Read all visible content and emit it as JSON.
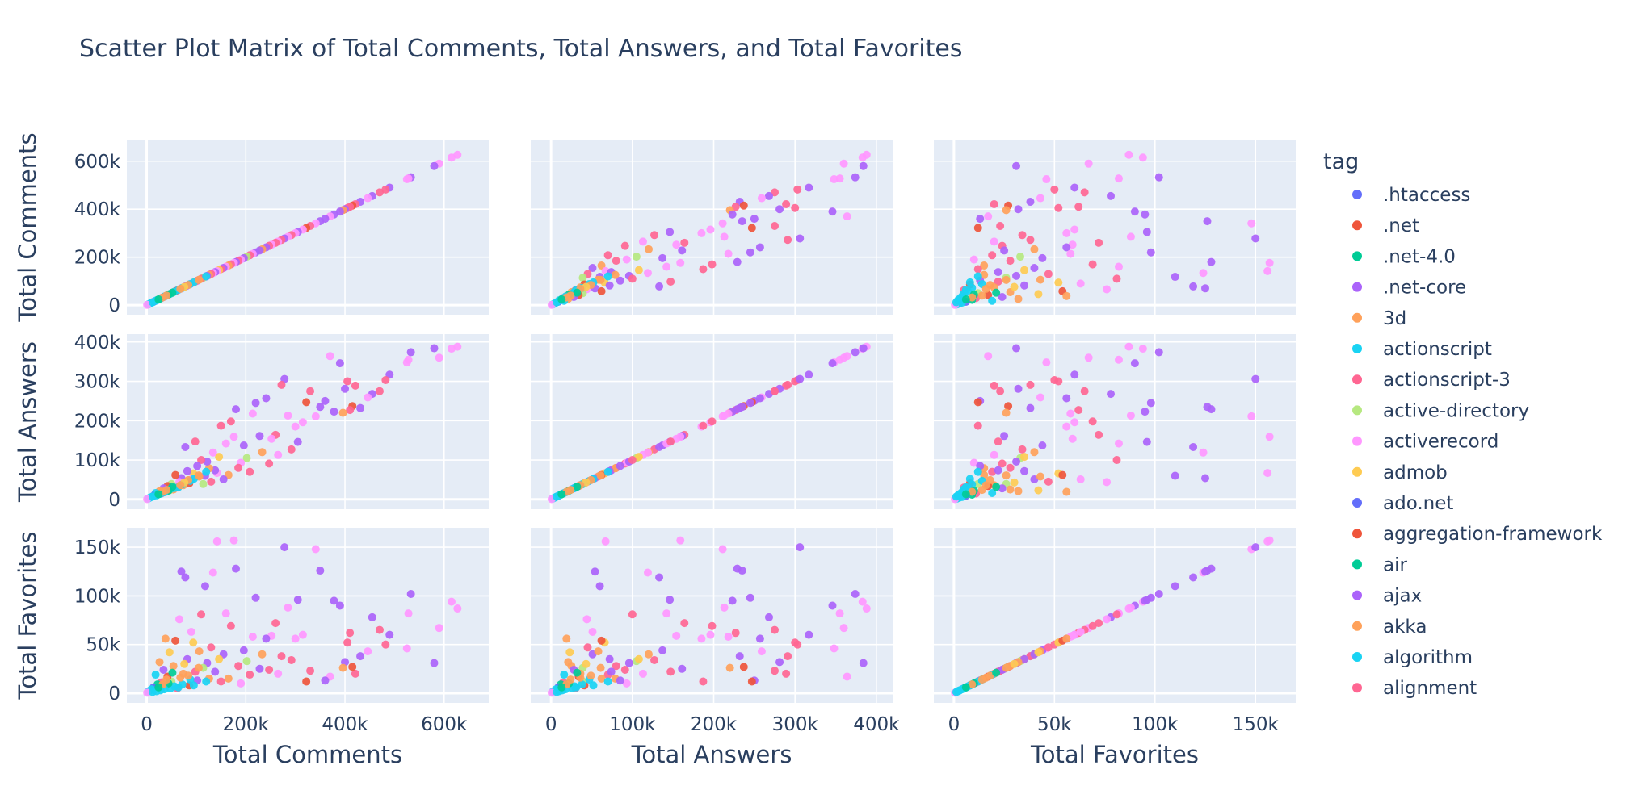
{
  "chart_data": {
    "type": "scatter",
    "subtype": "scatter-matrix",
    "title": "Scatter Plot Matrix of Total Comments, Total Answers, and Total Favorites",
    "dimensions": [
      "Total Comments",
      "Total Answers",
      "Total Favorites"
    ],
    "axis_ranges": {
      "Total Comments": [
        -40000,
        690000
      ],
      "Total Answers": [
        -25000,
        420000
      ],
      "Total Favorites": [
        -10000,
        170000
      ]
    },
    "ticks": {
      "Total Comments": [
        {
          "v": 0,
          "label": "0"
        },
        {
          "v": 200000,
          "label": "200k"
        },
        {
          "v": 400000,
          "label": "400k"
        },
        {
          "v": 600000,
          "label": "600k"
        }
      ],
      "Total Answers": [
        {
          "v": 0,
          "label": "0"
        },
        {
          "v": 100000,
          "label": "100k"
        },
        {
          "v": 200000,
          "label": "200k"
        },
        {
          "v": 300000,
          "label": "300k"
        },
        {
          "v": 400000,
          "label": "400k"
        }
      ],
      "Total Favorites": [
        {
          "v": 0,
          "label": "0"
        },
        {
          "v": 50000,
          "label": "50k"
        },
        {
          "v": 100000,
          "label": "100k"
        },
        {
          "v": 150000,
          "label": "150k"
        }
      ]
    },
    "grid": true,
    "legend": {
      "title": "tag",
      "position": "right",
      "entries": [
        {
          "name": ".htaccess",
          "color": "#636efa"
        },
        {
          "name": ".net",
          "color": "#EF553B"
        },
        {
          "name": ".net-4.0",
          "color": "#00cc96"
        },
        {
          "name": ".net-core",
          "color": "#ab63fa"
        },
        {
          "name": "3d",
          "color": "#FFA15A"
        },
        {
          "name": "actionscript",
          "color": "#19d3f3"
        },
        {
          "name": "actionscript-3",
          "color": "#FF6692"
        },
        {
          "name": "active-directory",
          "color": "#B6E880"
        },
        {
          "name": "activerecord",
          "color": "#FF97FF"
        },
        {
          "name": "admob",
          "color": "#FECB52"
        },
        {
          "name": "ado.net",
          "color": "#636efa"
        },
        {
          "name": "aggregation-framework",
          "color": "#EF553B"
        },
        {
          "name": "air",
          "color": "#00cc96"
        },
        {
          "name": "ajax",
          "color": "#ab63fa"
        },
        {
          "name": "akka",
          "color": "#FFA15A"
        },
        {
          "name": "algorithm",
          "color": "#19d3f3"
        },
        {
          "name": "alignment",
          "color": "#FF6692"
        }
      ]
    },
    "columns": [
      "comments",
      "answers",
      "favorites",
      "tag_index"
    ],
    "points": [
      [
        627000,
        388000,
        87000,
        8
      ],
      [
        615000,
        383000,
        94000,
        8
      ],
      [
        590000,
        360000,
        67000,
        8
      ],
      [
        580000,
        384000,
        31000,
        3
      ],
      [
        533000,
        374000,
        102000,
        3
      ],
      [
        528000,
        355000,
        82000,
        8
      ],
      [
        525000,
        348000,
        46000,
        8
      ],
      [
        490000,
        317000,
        60000,
        3
      ],
      [
        482000,
        303000,
        50000,
        6
      ],
      [
        470000,
        275000,
        65000,
        6
      ],
      [
        455000,
        268000,
        78000,
        3
      ],
      [
        446000,
        259000,
        43000,
        8
      ],
      [
        431000,
        232000,
        38000,
        3
      ],
      [
        421000,
        289000,
        20000,
        6
      ],
      [
        415000,
        237000,
        27000,
        11
      ],
      [
        410000,
        227000,
        62000,
        6
      ],
      [
        405000,
        300000,
        52000,
        6
      ],
      [
        400000,
        281000,
        32000,
        3
      ],
      [
        396000,
        220000,
        26000,
        4
      ],
      [
        390000,
        346000,
        90000,
        3
      ],
      [
        378000,
        223000,
        95000,
        3
      ],
      [
        370000,
        364000,
        17000,
        8
      ],
      [
        360000,
        250000,
        13000,
        3
      ],
      [
        350000,
        235000,
        126000,
        3
      ],
      [
        341000,
        211000,
        148000,
        8
      ],
      [
        330000,
        275000,
        23000,
        6
      ],
      [
        322000,
        247000,
        12000,
        11
      ],
      [
        315000,
        196000,
        60000,
        8
      ],
      [
        305000,
        146000,
        96000,
        3
      ],
      [
        300000,
        185000,
        56000,
        8
      ],
      [
        292000,
        127000,
        34000,
        6
      ],
      [
        285000,
        213000,
        88000,
        8
      ],
      [
        278000,
        306000,
        150000,
        3
      ],
      [
        272000,
        291000,
        38000,
        6
      ],
      [
        265000,
        113000,
        20000,
        8
      ],
      [
        260000,
        164000,
        72000,
        6
      ],
      [
        252000,
        154000,
        59000,
        8
      ],
      [
        247000,
        91000,
        24000,
        6
      ],
      [
        241000,
        257000,
        56000,
        3
      ],
      [
        233000,
        120000,
        40000,
        4
      ],
      [
        228000,
        161000,
        25000,
        3
      ],
      [
        220000,
        245000,
        98000,
        3
      ],
      [
        214000,
        218000,
        58000,
        8
      ],
      [
        208000,
        70000,
        19000,
        6
      ],
      [
        202000,
        105000,
        33000,
        7
      ],
      [
        196000,
        137000,
        44000,
        3
      ],
      [
        190000,
        93000,
        10000,
        8
      ],
      [
        185000,
        80000,
        28000,
        6
      ],
      [
        180000,
        229000,
        128000,
        3
      ],
      [
        176000,
        159000,
        157000,
        8
      ],
      [
        170000,
        198000,
        69000,
        6
      ],
      [
        165000,
        62000,
        15000,
        4
      ],
      [
        160000,
        142000,
        82000,
        8
      ],
      [
        155000,
        51000,
        40000,
        3
      ],
      [
        150000,
        187000,
        12000,
        6
      ],
      [
        146000,
        108000,
        35000,
        9
      ],
      [
        142000,
        67000,
        156000,
        8
      ],
      [
        138000,
        74000,
        22000,
        3
      ],
      [
        134000,
        119000,
        124000,
        8
      ],
      [
        130000,
        45000,
        47000,
        6
      ],
      [
        126000,
        79000,
        15000,
        4
      ],
      [
        122000,
        96000,
        31000,
        3
      ],
      [
        118000,
        60000,
        110000,
        3
      ],
      [
        114000,
        39000,
        26000,
        7
      ],
      [
        110000,
        100000,
        81000,
        6
      ],
      [
        106000,
        58000,
        43000,
        4
      ],
      [
        102000,
        85000,
        13000,
        3
      ],
      [
        98000,
        147000,
        22000,
        6
      ],
      [
        94000,
        66000,
        52000,
        9
      ],
      [
        90000,
        51000,
        63000,
        8
      ],
      [
        86000,
        41000,
        8000,
        11
      ],
      [
        82000,
        72000,
        35000,
        3
      ],
      [
        78000,
        133000,
        119000,
        3
      ],
      [
        74000,
        36000,
        20000,
        4
      ],
      [
        70000,
        54000,
        125000,
        3
      ],
      [
        66000,
        44000,
        76000,
        8
      ],
      [
        62000,
        30000,
        5000,
        6
      ],
      [
        58000,
        62000,
        54000,
        11
      ],
      [
        54000,
        25000,
        28000,
        4
      ],
      [
        50000,
        39000,
        12000,
        7
      ],
      [
        46000,
        23000,
        42000,
        9
      ],
      [
        42000,
        34000,
        17000,
        11
      ],
      [
        38000,
        19000,
        56000,
        4
      ],
      [
        34000,
        28000,
        24000,
        3
      ],
      [
        30000,
        15000,
        11000,
        6
      ],
      [
        26000,
        21000,
        32000,
        4
      ],
      [
        22000,
        12000,
        9000,
        2
      ],
      [
        18000,
        16000,
        19000,
        5
      ],
      [
        14000,
        9000,
        6000,
        10
      ],
      [
        10000,
        6000,
        4000,
        15
      ],
      [
        6000,
        4000,
        2500,
        5
      ],
      [
        3000,
        2000,
        1500,
        15
      ],
      [
        1000,
        700,
        500,
        8
      ],
      [
        120000,
        70000,
        12000,
        15
      ],
      [
        95000,
        52000,
        8000,
        15
      ],
      [
        88000,
        47000,
        14000,
        5
      ],
      [
        72000,
        38000,
        9000,
        5
      ],
      [
        64000,
        31000,
        6000,
        15
      ],
      [
        56000,
        29000,
        7000,
        5
      ],
      [
        48000,
        26000,
        5000,
        15
      ],
      [
        44000,
        22000,
        10000,
        2
      ],
      [
        36000,
        18000,
        4000,
        5
      ],
      [
        28000,
        14000,
        3000,
        15
      ],
      [
        20000,
        10000,
        2000,
        5
      ],
      [
        12000,
        7000,
        1200,
        15
      ],
      [
        105000,
        61000,
        26000,
        4
      ],
      [
        84000,
        49000,
        18000,
        14
      ],
      [
        76000,
        43000,
        30000,
        9
      ],
      [
        68000,
        36000,
        16000,
        14
      ],
      [
        52000,
        32000,
        21000,
        12
      ],
      [
        40000,
        24000,
        14000,
        14
      ],
      [
        32000,
        19000,
        9000,
        4
      ],
      [
        24000,
        13000,
        6000,
        12
      ]
    ]
  }
}
